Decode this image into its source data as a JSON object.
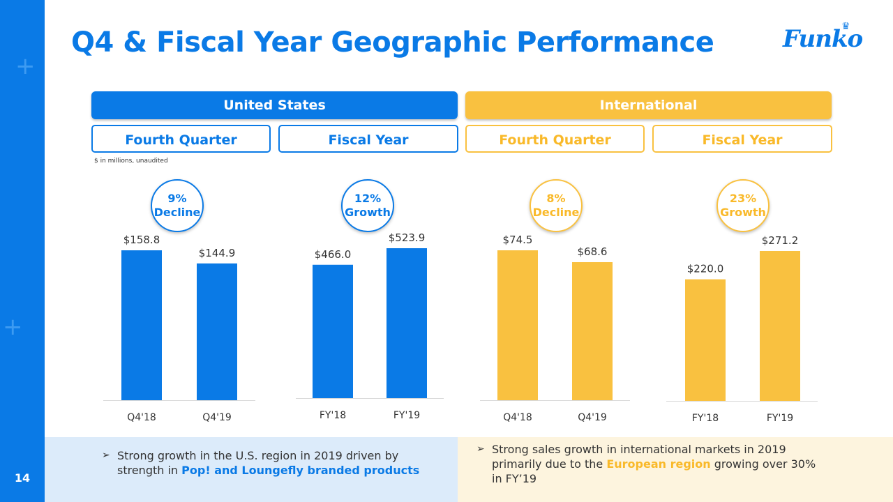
{
  "slide": {
    "title": "Q4 & Fiscal Year Geographic Performance",
    "logo_text": "Funko",
    "page_number": "14",
    "units_note": "$ in millions, unaudited"
  },
  "colors": {
    "us": "#0a7ae6",
    "intl": "#f9c140"
  },
  "regions": [
    {
      "label": "United States"
    },
    {
      "label": "International"
    }
  ],
  "chart_data": [
    {
      "type": "bar",
      "region": "United States",
      "title": "Fourth Quarter",
      "categories": [
        "Q4'18",
        "Q4'19"
      ],
      "values": [
        158.8,
        144.9
      ],
      "data_labels": [
        "$158.8",
        "$144.9"
      ],
      "change_pct": "9%",
      "change_label": "Decline",
      "ylim": [
        0,
        170
      ]
    },
    {
      "type": "bar",
      "region": "United States",
      "title": "Fiscal Year",
      "categories": [
        "FY'18",
        "FY'19"
      ],
      "values": [
        466.0,
        523.9
      ],
      "data_labels": [
        "$466.0",
        "$523.9"
      ],
      "change_pct": "12%",
      "change_label": "Growth",
      "ylim": [
        0,
        570
      ]
    },
    {
      "type": "bar",
      "region": "International",
      "title": "Fourth Quarter",
      "categories": [
        "Q4'18",
        "Q4'19"
      ],
      "values": [
        74.5,
        68.6
      ],
      "data_labels": [
        "$74.5",
        "$68.6"
      ],
      "change_pct": "8%",
      "change_label": "Decline",
      "ylim": [
        0,
        80
      ]
    },
    {
      "type": "bar",
      "region": "International",
      "title": "Fiscal Year",
      "categories": [
        "FY'18",
        "FY'19"
      ],
      "values": [
        220.0,
        271.2
      ],
      "data_labels": [
        "$220.0",
        "$271.2"
      ],
      "change_pct": "23%",
      "change_label": "Growth",
      "ylim": [
        0,
        290
      ]
    }
  ],
  "bullets": {
    "us": {
      "text_before": "Strong growth in the U.S. region in 2019 driven by strength in ",
      "highlight": "Pop! and Loungefly branded products",
      "text_after": ""
    },
    "intl": {
      "text_before": "Strong sales growth in international markets in 2019 primarily due to the ",
      "highlight": "European region",
      "text_after": " growing over 30% in FY’19"
    }
  }
}
